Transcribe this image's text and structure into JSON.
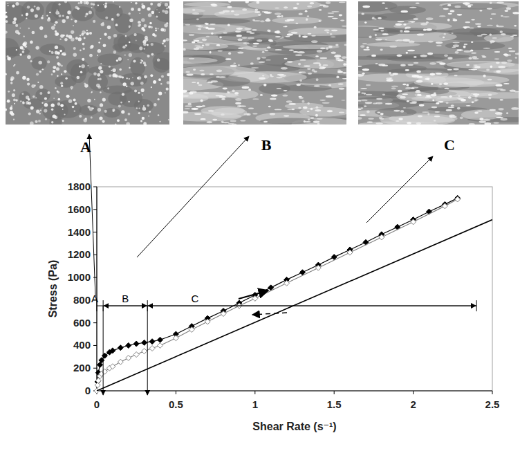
{
  "chart_data": {
    "type": "line",
    "image_labels": [
      "A",
      "B",
      "C"
    ],
    "x_label": "Shear Rate (s⁻¹)",
    "y_label": "Stress (Pa)",
    "xlim": [
      0,
      2.5
    ],
    "xticks": [
      0,
      0.5,
      1,
      1.5,
      2,
      2.5
    ],
    "ylim": [
      0,
      1800
    ],
    "yticks": [
      0,
      200,
      400,
      600,
      800,
      1000,
      1200,
      1400,
      1600,
      1800
    ],
    "grid": false,
    "series": [
      {
        "color": "#000000",
        "marker": "diamond",
        "line_style": "solid",
        "x": [
          0,
          0.005,
          0.01,
          0.02,
          0.03,
          0.05,
          0.08,
          0.1,
          0.15,
          0.2,
          0.25,
          0.3,
          0.35,
          0.4,
          0.5,
          0.6,
          0.7,
          0.8,
          0.9,
          1.0,
          1.1,
          1.2,
          1.3,
          1.4,
          1.5,
          1.6,
          1.7,
          1.8,
          1.9,
          2.0,
          2.1,
          2.2,
          2.28
        ],
        "values": [
          0,
          80,
          160,
          230,
          270,
          310,
          340,
          355,
          380,
          400,
          415,
          425,
          435,
          450,
          500,
          570,
          640,
          705,
          775,
          845,
          910,
          980,
          1045,
          1110,
          1180,
          1245,
          1310,
          1380,
          1445,
          1510,
          1580,
          1645,
          1700
        ]
      },
      {
        "color": "#808080",
        "marker": "diamond-open",
        "line_style": "solid",
        "x": [
          0,
          0.005,
          0.01,
          0.02,
          0.03,
          0.05,
          0.08,
          0.1,
          0.15,
          0.2,
          0.25,
          0.3,
          0.35,
          0.4,
          0.5,
          0.6,
          0.7,
          0.8,
          0.9,
          1.0,
          1.2,
          1.4,
          1.6,
          1.8,
          2.0,
          2.2,
          2.28
        ],
        "values": [
          0,
          50,
          90,
          130,
          150,
          170,
          200,
          215,
          255,
          290,
          320,
          350,
          375,
          400,
          465,
          540,
          610,
          680,
          750,
          815,
          950,
          1085,
          1220,
          1355,
          1490,
          1630,
          1690
        ]
      },
      {
        "color": "#000000",
        "marker": "none",
        "line_style": "solid",
        "x": [
          0,
          2.5
        ],
        "values": [
          0,
          1510
        ]
      }
    ],
    "annotations": {
      "level": 750,
      "regions": [
        {
          "label": "A",
          "start": 0,
          "end": 0.04
        },
        {
          "label": "B",
          "start": 0.04,
          "end": 0.32
        },
        {
          "label": "C",
          "start": 0.32,
          "end": 2.4
        }
      ]
    }
  }
}
